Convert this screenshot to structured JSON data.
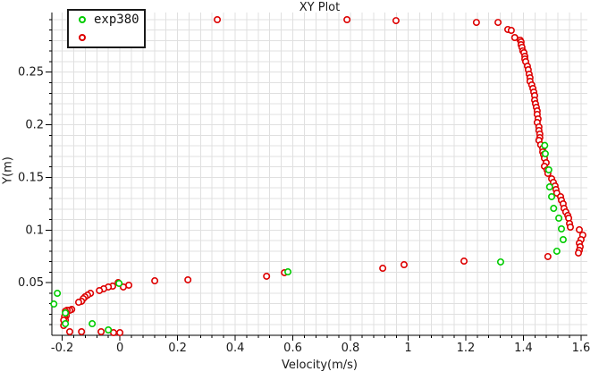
{
  "chart_data": {
    "type": "scatter",
    "title": "XY Plot",
    "xlabel": "Velocity(m/s)",
    "ylabel": "Y(m)",
    "grid": true,
    "legend_position": "top-left",
    "colors": {
      "background": "#ffffff",
      "grid": "#e0e0e0",
      "axis": "#000000",
      "text": "#1a1a1a",
      "marker_fill": "#ffffff"
    },
    "x_axis": {
      "min": -0.236,
      "max": 1.622,
      "ticks": [
        -0.2,
        0,
        0.2,
        0.4,
        0.6,
        0.8,
        1,
        1.2,
        1.4,
        1.6
      ],
      "tick_labels": [
        "-0.2",
        "0",
        "0.2",
        "0.4",
        "0.6",
        "0.8",
        "1",
        "1.2",
        "1.4",
        "1.6"
      ],
      "minor_step": 0.04
    },
    "y_axis": {
      "min": 0,
      "max": 0.3067,
      "ticks": [
        0.05,
        0.1,
        0.15,
        0.2,
        0.25
      ],
      "tick_labels": [
        "0.05",
        "0.1",
        "0.15",
        "0.2",
        "0.25"
      ],
      "minor_step": 0.01
    },
    "legend": {
      "entries": [
        {
          "label": "exp380",
          "color": "#00cc00"
        },
        {
          "label": "",
          "color": "#dd0000"
        }
      ]
    },
    "series": [
      {
        "name": "",
        "color": "#dd0000",
        "marker": "open-circle",
        "points": [
          [
            0.338,
            0.2999
          ],
          [
            0.788,
            0.2999
          ],
          [
            0.958,
            0.299
          ],
          [
            1.237,
            0.2973
          ],
          [
            1.312,
            0.2973
          ],
          [
            1.346,
            0.2906
          ],
          [
            1.358,
            0.2897
          ],
          [
            1.37,
            0.2829
          ],
          [
            1.389,
            0.2804
          ],
          [
            1.392,
            0.2787
          ],
          [
            1.392,
            0.2761
          ],
          [
            1.395,
            0.2736
          ],
          [
            1.398,
            0.2702
          ],
          [
            1.402,
            0.2685
          ],
          [
            1.405,
            0.2651
          ],
          [
            1.405,
            0.2625
          ],
          [
            1.408,
            0.26
          ],
          [
            1.414,
            0.2557
          ],
          [
            1.417,
            0.2523
          ],
          [
            1.42,
            0.2481
          ],
          [
            1.423,
            0.2447
          ],
          [
            1.423,
            0.2413
          ],
          [
            1.429,
            0.2379
          ],
          [
            1.433,
            0.2345
          ],
          [
            1.436,
            0.2311
          ],
          [
            1.439,
            0.2277
          ],
          [
            1.439,
            0.2234
          ],
          [
            1.442,
            0.22
          ],
          [
            1.445,
            0.2166
          ],
          [
            1.448,
            0.2132
          ],
          [
            1.448,
            0.2099
          ],
          [
            1.451,
            0.2056
          ],
          [
            1.448,
            0.2022
          ],
          [
            1.454,
            0.198
          ],
          [
            1.454,
            0.1946
          ],
          [
            1.457,
            0.1912
          ],
          [
            1.457,
            0.1878
          ],
          [
            1.454,
            0.1852
          ],
          [
            1.46,
            0.181
          ],
          [
            1.467,
            0.1776
          ],
          [
            1.467,
            0.1742
          ],
          [
            1.47,
            0.1716
          ],
          [
            1.473,
            0.1682
          ],
          [
            1.479,
            0.164
          ],
          [
            1.473,
            0.1606
          ],
          [
            1.482,
            0.1572
          ],
          [
            1.485,
            0.1538
          ],
          [
            1.498,
            0.1487
          ],
          [
            1.504,
            0.1453
          ],
          [
            1.51,
            0.1419
          ],
          [
            1.513,
            0.1385
          ],
          [
            1.516,
            0.1351
          ],
          [
            1.529,
            0.1317
          ],
          [
            1.532,
            0.1283
          ],
          [
            1.538,
            0.1249
          ],
          [
            1.541,
            0.1206
          ],
          [
            1.547,
            0.1172
          ],
          [
            1.554,
            0.1138
          ],
          [
            1.557,
            0.1113
          ],
          [
            1.56,
            0.1062
          ],
          [
            1.563,
            0.1028
          ],
          [
            1.594,
            0.1003
          ],
          [
            1.606,
            0.0952
          ],
          [
            1.6,
            0.0909
          ],
          [
            1.594,
            0.0875
          ],
          [
            1.597,
            0.0841
          ],
          [
            1.594,
            0.0807
          ],
          [
            1.591,
            0.0782
          ],
          [
            1.485,
            0.0748
          ],
          [
            1.194,
            0.0705
          ],
          [
            0.986,
            0.0671
          ],
          [
            0.912,
            0.0637
          ],
          [
            0.571,
            0.0595
          ],
          [
            0.509,
            0.0561
          ],
          [
            0.236,
            0.0527
          ],
          [
            0.121,
            0.0518
          ],
          [
            0.031,
            0.0476
          ],
          [
            0.012,
            0.0459
          ],
          [
            -0.006,
            0.0501
          ],
          [
            -0.025,
            0.0467
          ],
          [
            -0.04,
            0.0459
          ],
          [
            -0.056,
            0.0442
          ],
          [
            -0.071,
            0.0425
          ],
          [
            -0.102,
            0.0399
          ],
          [
            -0.112,
            0.0382
          ],
          [
            -0.121,
            0.0365
          ],
          [
            -0.127,
            0.0348
          ],
          [
            -0.133,
            0.0323
          ],
          [
            -0.143,
            0.0314
          ],
          [
            -0.167,
            0.0246
          ],
          [
            -0.174,
            0.0238
          ],
          [
            -0.183,
            0.0238
          ],
          [
            -0.189,
            0.0229
          ],
          [
            -0.186,
            0.0187
          ],
          [
            -0.192,
            0.0178
          ],
          [
            -0.189,
            0.0144
          ],
          [
            -0.195,
            0.0144
          ],
          [
            -0.195,
            0.0093
          ],
          [
            -0.174,
            0.0034
          ],
          [
            -0.133,
            0.0034
          ],
          [
            -0.065,
            0.0034
          ],
          [
            -0.022,
            0.0025
          ],
          [
            0.0,
            0.0025
          ]
        ]
      },
      {
        "name": "exp380",
        "color": "#00cc00",
        "marker": "open-circle",
        "points": [
          [
            -0.217,
            0.0399
          ],
          [
            -0.229,
            0.0297
          ],
          [
            -0.189,
            0.0212
          ],
          [
            -0.189,
            0.011
          ],
          [
            -0.096,
            0.011
          ],
          [
            -0.04,
            0.0051
          ],
          [
            -0.003,
            0.0493
          ],
          [
            0.583,
            0.0603
          ],
          [
            1.321,
            0.0697
          ],
          [
            1.516,
            0.0799
          ],
          [
            1.538,
            0.0909
          ],
          [
            1.532,
            0.1011
          ],
          [
            1.523,
            0.1113
          ],
          [
            1.505,
            0.1206
          ],
          [
            1.498,
            0.1317
          ],
          [
            1.491,
            0.141
          ],
          [
            1.488,
            0.1572
          ],
          [
            1.476,
            0.1725
          ],
          [
            1.474,
            0.1804
          ]
        ]
      }
    ]
  }
}
